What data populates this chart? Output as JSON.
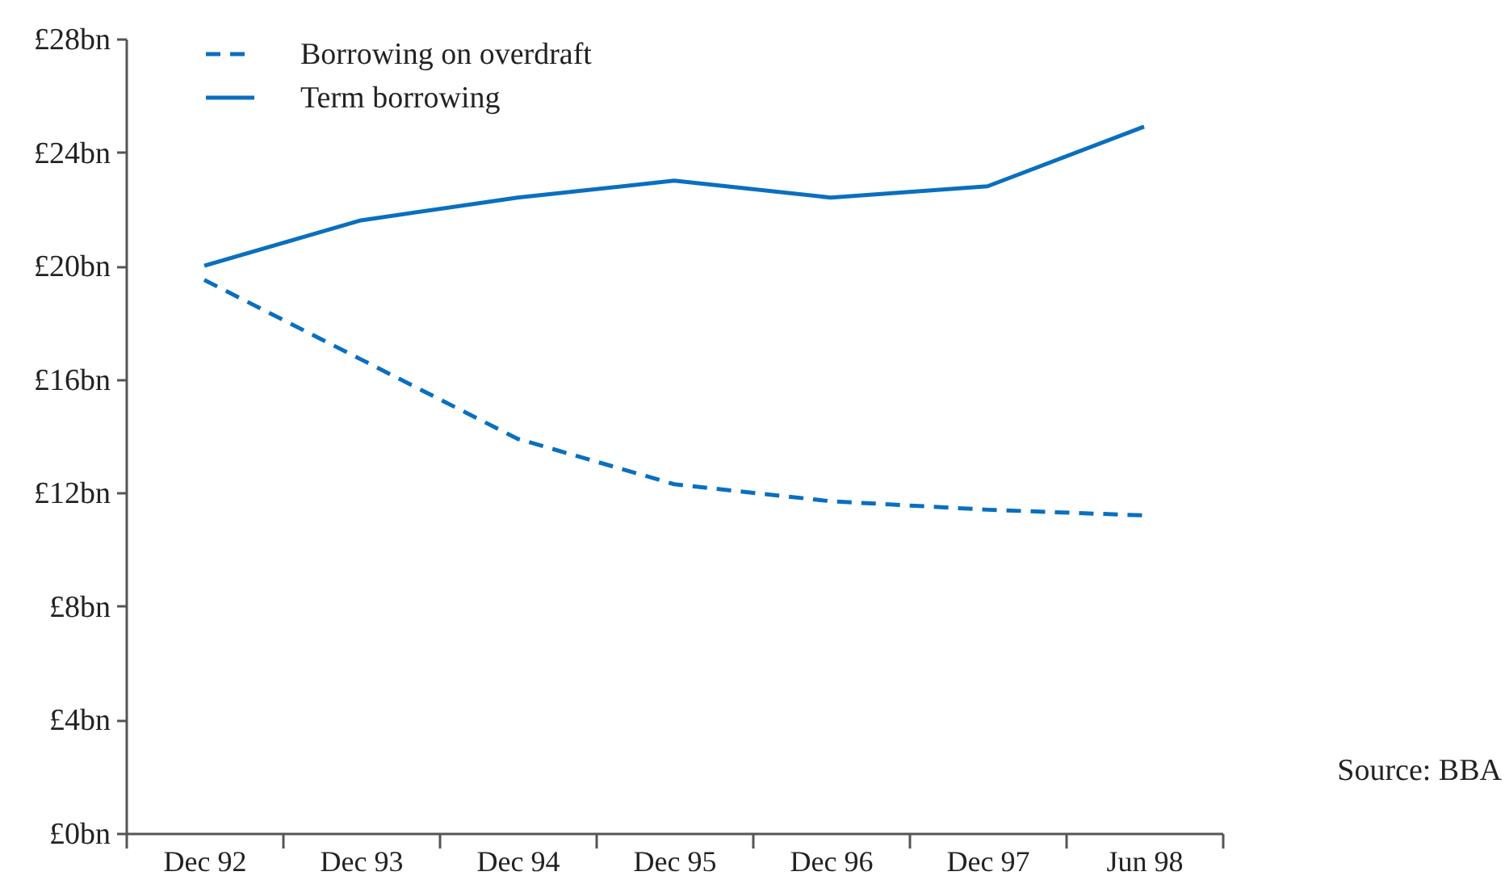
{
  "chart_data": {
    "type": "line",
    "categories": [
      "Dec 92",
      "Dec 93",
      "Dec 94",
      "Dec 95",
      "Dec 96",
      "Dec 97",
      "Jun 98"
    ],
    "series": [
      {
        "name": "Borrowing on overdraft",
        "color": "#0a6fbf",
        "line_style": "dashed",
        "values": [
          19.5,
          16.7,
          13.9,
          12.3,
          11.7,
          11.4,
          11.2
        ]
      },
      {
        "name": "Term borrowing",
        "color": "#0a6fbf",
        "line_style": "solid",
        "values": [
          20.0,
          21.6,
          22.4,
          23.0,
          22.4,
          22.8,
          24.9
        ]
      }
    ],
    "ylim": [
      0,
      28
    ],
    "yticks": [
      {
        "value": 0,
        "label": "£0bn"
      },
      {
        "value": 4,
        "label": "£4bn"
      },
      {
        "value": 8,
        "label": "£8bn"
      },
      {
        "value": 12,
        "label": "£12bn"
      },
      {
        "value": 16,
        "label": "£16bn"
      },
      {
        "value": 20,
        "label": "£20bn"
      },
      {
        "value": 24,
        "label": "£24bn"
      },
      {
        "value": 28,
        "label": "£28bn"
      }
    ],
    "legend": "top left",
    "annotations": [
      "Source: BBA"
    ]
  }
}
